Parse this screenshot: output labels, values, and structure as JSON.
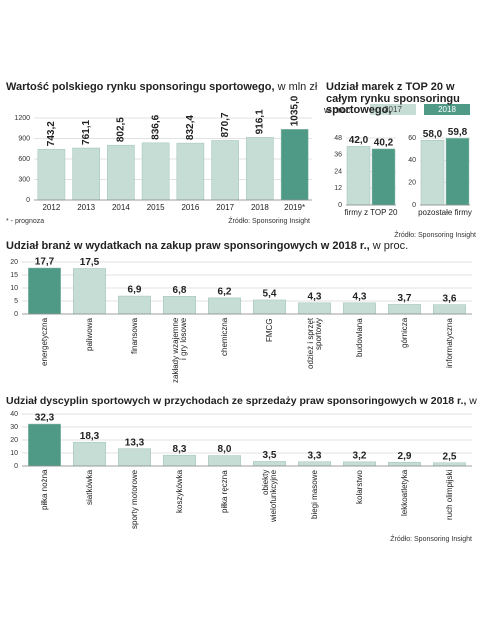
{
  "chart_data": [
    {
      "type": "bar",
      "title": "Wartość polskiego rynku sponsoringu sportowego,",
      "subtitle": "w mln zł",
      "categories": [
        "2012",
        "2013",
        "2014",
        "2015",
        "2016",
        "2017",
        "2018",
        "2019*"
      ],
      "values": [
        743.2,
        761.1,
        802.5,
        836.6,
        832.4,
        870.7,
        916.1,
        1035.0
      ],
      "value_labels": [
        "743,2",
        "761,1",
        "802,5",
        "836,6",
        "832,4",
        "870,7",
        "916,1",
        "1035,0"
      ],
      "colors": [
        "#c6ddd5",
        "#c6ddd5",
        "#c6ddd5",
        "#c6ddd5",
        "#c6ddd5",
        "#c6ddd5",
        "#c6ddd5",
        "#4e9a86"
      ],
      "ylim": [
        0,
        1200
      ],
      "yticks": [
        0,
        300,
        600,
        900,
        1200
      ],
      "grid": true,
      "footnote": "* - prognoza",
      "source": "Źródło: Sponsoring Insight"
    },
    {
      "type": "grouped_bar",
      "title": "Udział marek z TOP 20 w całym rynku sponsoringu sportowego,",
      "subtitle": "w proc.",
      "categories": [
        "firmy z TOP 20",
        "pozostałe firmy"
      ],
      "series": [
        {
          "name": "2017",
          "color": "#c6ddd5",
          "values": [
            42.0,
            58.0
          ],
          "value_labels": [
            "42,0",
            "58,0"
          ]
        },
        {
          "name": "2018",
          "color": "#4e9a86",
          "values": [
            40.2,
            59.8
          ],
          "value_labels": [
            "40,2",
            "59,8"
          ]
        }
      ],
      "panels": [
        {
          "ylim": [
            0,
            48
          ],
          "yticks": [
            0,
            12,
            24,
            36,
            48
          ]
        },
        {
          "ylim": [
            0,
            60
          ],
          "yticks": [
            0,
            20,
            40,
            60
          ]
        }
      ],
      "grid": true,
      "source": "Źródło: Sponsoring Insight"
    },
    {
      "type": "bar",
      "title": "Udział branż w wydatkach na zakup praw sponsoringowych w 2018 r.,",
      "subtitle": "w proc.",
      "categories": [
        "energetyczna",
        "paliwowa",
        "finansowa",
        "zakłady wzajemne i gry losowe",
        "chemiczna",
        "FMCG",
        "odzież i sprzęt sportowy",
        "budowlana",
        "górnicza",
        "informatyczna"
      ],
      "values": [
        17.7,
        17.5,
        6.9,
        6.8,
        6.2,
        5.4,
        4.3,
        4.3,
        3.7,
        3.6
      ],
      "value_labels": [
        "17,7",
        "17,5",
        "6,9",
        "6,8",
        "6,2",
        "5,4",
        "4,3",
        "4,3",
        "3,7",
        "3,6"
      ],
      "colors": [
        "#4e9a86",
        "#c6ddd5",
        "#c6ddd5",
        "#c6ddd5",
        "#c6ddd5",
        "#c6ddd5",
        "#c6ddd5",
        "#c6ddd5",
        "#c6ddd5",
        "#c6ddd5"
      ],
      "ylim": [
        0,
        20
      ],
      "yticks": [
        0,
        5,
        10,
        15,
        20
      ],
      "grid": true
    },
    {
      "type": "bar",
      "title": "Udział dyscyplin sportowych w przychodach ze sprzedaży praw sponsoringowych w 2018 r.,",
      "subtitle": "w proc.",
      "categories": [
        "piłka nożna",
        "siatkówka",
        "sporty motorowe",
        "koszykówka",
        "piłka ręczna",
        "obiekty wielofunkcyjne",
        "biegi masowe",
        "kolarstwo",
        "lekkoatletyka",
        "ruch olimpijski"
      ],
      "values": [
        32.3,
        18.3,
        13.3,
        8.3,
        8.0,
        3.5,
        3.3,
        3.2,
        2.9,
        2.5
      ],
      "value_labels": [
        "32,3",
        "18,3",
        "13,3",
        "8,3",
        "8,0",
        "3,5",
        "3,3",
        "3,2",
        "2,9",
        "2,5"
      ],
      "colors": [
        "#4e9a86",
        "#c6ddd5",
        "#c6ddd5",
        "#c6ddd5",
        "#c6ddd5",
        "#c6ddd5",
        "#c6ddd5",
        "#c6ddd5",
        "#c6ddd5",
        "#c6ddd5"
      ],
      "ylim": [
        0,
        40
      ],
      "yticks": [
        0,
        10,
        20,
        30,
        40
      ],
      "grid": true,
      "source": "Źródło: Sponsoring Insight"
    }
  ]
}
